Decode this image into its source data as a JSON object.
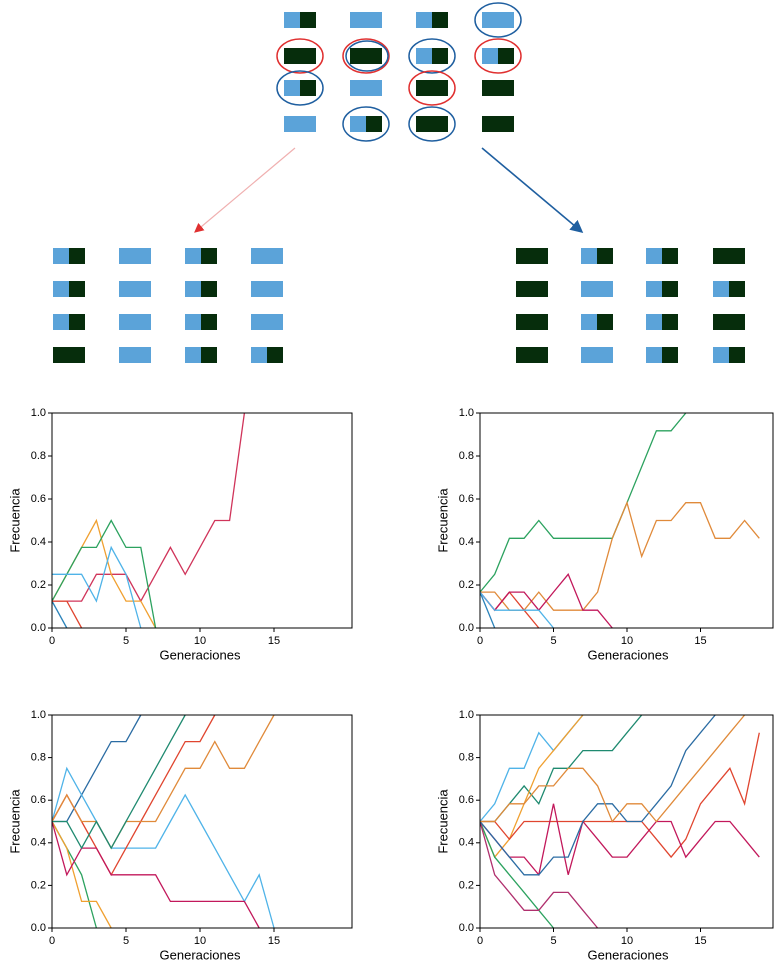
{
  "chart_data": [
    {
      "type": "line",
      "xlabel": "Generaciones",
      "ylabel": "Frecuencia",
      "x": [
        0,
        1,
        2,
        3,
        4,
        5,
        6,
        7,
        8,
        9,
        10,
        11,
        12,
        13,
        14,
        15,
        16,
        17,
        18,
        19
      ],
      "xlim": [
        0,
        20
      ],
      "xticks": [
        0,
        5,
        10,
        15
      ],
      "ylim": [
        0,
        1
      ],
      "yticks": [
        {
          "value": 0,
          "label": "0.0"
        },
        0.2,
        0.4,
        0.6,
        0.8,
        {
          "value": 1,
          "label": "1.0"
        }
      ],
      "series": [
        {
          "color": "#d0345a",
          "values": [
            0.125,
            0.125,
            0.125,
            0.25,
            0.25,
            0.25,
            0.125,
            0.25,
            0.375,
            0.25,
            0.375,
            0.5,
            0.5,
            1.0,
            null,
            null,
            null,
            null,
            null,
            null
          ]
        },
        {
          "color": "#f0a030",
          "values": [
            0.125,
            0.25,
            0.375,
            0.5,
            0.25,
            0.125,
            0.125,
            0,
            null,
            null,
            null,
            null,
            null,
            null,
            null,
            null,
            null,
            null,
            null,
            null
          ]
        },
        {
          "color": "#2ca25f",
          "values": [
            0.125,
            0.25,
            0.375,
            0.375,
            0.5,
            0.375,
            0.375,
            0,
            null,
            null,
            null,
            null,
            null,
            null,
            null,
            null,
            null,
            null,
            null,
            null
          ]
        },
        {
          "color": "#2b83ba",
          "values": [
            0.125,
            0,
            null,
            null,
            null,
            null,
            null,
            null,
            null,
            null,
            null,
            null,
            null,
            null,
            null,
            null,
            null,
            null,
            null,
            null
          ]
        },
        {
          "color": "#4fb3e8",
          "values": [
            0.25,
            0.25,
            0.25,
            0.125,
            0.375,
            0.25,
            0,
            null,
            null,
            null,
            null,
            null,
            null,
            null,
            null,
            null,
            null,
            null,
            null,
            null
          ]
        },
        {
          "color": "#e0452f",
          "values": [
            0.125,
            0.125,
            0,
            null,
            null,
            null,
            null,
            null,
            null,
            null,
            null,
            null,
            null,
            null,
            null,
            null,
            null,
            null,
            null,
            null
          ]
        }
      ]
    },
    {
      "type": "line",
      "xlabel": "Generaciones",
      "ylabel": "Frecuencia",
      "x": [
        0,
        1,
        2,
        3,
        4,
        5,
        6,
        7,
        8,
        9,
        10,
        11,
        12,
        13,
        14,
        15,
        16,
        17,
        18,
        19
      ],
      "xlim": [
        0,
        20
      ],
      "xticks": [
        0,
        5,
        10,
        15
      ],
      "ylim": [
        0,
        1
      ],
      "yticks": [
        {
          "value": 0,
          "label": "0.0"
        },
        0.2,
        0.4,
        0.6,
        0.8,
        {
          "value": 1,
          "label": "1.0"
        }
      ],
      "series": [
        {
          "color": "#2ca25f",
          "values": [
            0.167,
            0.25,
            0.417,
            0.417,
            0.5,
            0.417,
            0.417,
            0.417,
            0.417,
            0.417,
            0.583,
            0.75,
            0.917,
            0.917,
            1.0,
            null,
            null,
            null,
            null,
            null
          ]
        },
        {
          "color": "#e08a3a",
          "values": [
            0.167,
            0.167,
            0.083,
            0.083,
            0.167,
            0.083,
            0.083,
            0.083,
            0.167,
            0.417,
            0.583,
            0.333,
            0.5,
            0.5,
            0.583,
            0.583,
            0.417,
            0.417,
            0.5,
            0.417
          ]
        },
        {
          "color": "#e0452f",
          "values": [
            0.167,
            0.083,
            0.167,
            0.083,
            0,
            null,
            null,
            null,
            null,
            null,
            null,
            null,
            null,
            null,
            null,
            null,
            null,
            null,
            null,
            null
          ]
        },
        {
          "color": "#c2185b",
          "values": [
            0.167,
            0.083,
            0.167,
            0.167,
            0.083,
            0.167,
            0.25,
            0.083,
            0.083,
            0,
            null,
            null,
            null,
            null,
            null,
            null,
            null,
            null,
            null,
            null
          ]
        },
        {
          "color": "#2b83ba",
          "values": [
            0.167,
            0,
            null,
            null,
            null,
            null,
            null,
            null,
            null,
            null,
            null,
            null,
            null,
            null,
            null,
            null,
            null,
            null,
            null,
            null
          ]
        },
        {
          "color": "#4fb3e8",
          "values": [
            0.167,
            0.083,
            0.083,
            0.083,
            0.083,
            0,
            null,
            null,
            null,
            null,
            null,
            null,
            null,
            null,
            null,
            null,
            null,
            null,
            null,
            null
          ]
        }
      ]
    },
    {
      "type": "line",
      "xlabel": "Generaciones",
      "ylabel": "Frecuencia",
      "x": [
        0,
        1,
        2,
        3,
        4,
        5,
        6,
        7,
        8,
        9,
        10,
        11,
        12,
        13,
        14,
        15,
        16,
        17,
        18,
        19
      ],
      "xlim": [
        0,
        20
      ],
      "xticks": [
        0,
        5,
        10,
        15
      ],
      "ylim": [
        0,
        1
      ],
      "yticks": [
        {
          "value": 0,
          "label": "0.0"
        },
        0.2,
        0.4,
        0.6,
        0.8,
        {
          "value": 1,
          "label": "1.0"
        }
      ],
      "series": [
        {
          "color": "#2b6ca3",
          "values": [
            0.5,
            0.5,
            0.625,
            0.75,
            0.875,
            0.875,
            1.0,
            null,
            null,
            null,
            null,
            null,
            null,
            null,
            null,
            null,
            null,
            null,
            null,
            null
          ]
        },
        {
          "color": "#4fb3e8",
          "values": [
            0.5,
            0.75,
            0.625,
            0.5,
            0.375,
            0.375,
            0.375,
            0.375,
            0.5,
            0.625,
            0.5,
            0.375,
            0.25,
            0.125,
            0.25,
            0,
            null,
            null,
            null,
            null
          ]
        },
        {
          "color": "#2ca25f",
          "values": [
            0.5,
            0.375,
            0.25,
            0,
            null,
            null,
            null,
            null,
            null,
            null,
            null,
            null,
            null,
            null,
            null,
            null,
            null,
            null,
            null,
            null
          ]
        },
        {
          "color": "#f0a030",
          "values": [
            0.5,
            0.375,
            0.125,
            0.125,
            0,
            null,
            null,
            null,
            null,
            null,
            null,
            null,
            null,
            null,
            null,
            null,
            null,
            null,
            null,
            null
          ]
        },
        {
          "color": "#e0452f",
          "values": [
            0.5,
            0.625,
            0.5,
            0.375,
            0.25,
            0.375,
            0.5,
            0.625,
            0.75,
            0.875,
            0.875,
            1.0,
            null,
            null,
            null,
            null,
            null,
            null,
            null,
            null
          ]
        },
        {
          "color": "#c2185b",
          "values": [
            0.5,
            0.25,
            0.375,
            0.375,
            0.25,
            0.25,
            0.25,
            0.25,
            0.125,
            0.125,
            0.125,
            0.125,
            0.125,
            0.125,
            0,
            null,
            null,
            null,
            null,
            null
          ]
        },
        {
          "color": "#e08a3a",
          "values": [
            0.5,
            0.625,
            0.5,
            0.5,
            0.375,
            0.5,
            0.5,
            0.5,
            0.625,
            0.75,
            0.75,
            0.875,
            0.75,
            0.75,
            0.875,
            1.0,
            null,
            null,
            null,
            null
          ]
        },
        {
          "color": "#1f8a70",
          "values": [
            0.5,
            0.5,
            0.375,
            0.5,
            0.375,
            0.5,
            0.625,
            0.75,
            0.875,
            1.0,
            null,
            null,
            null,
            null,
            null,
            null,
            null,
            null,
            null,
            null
          ]
        }
      ]
    },
    {
      "type": "line",
      "xlabel": "Generaciones",
      "ylabel": "Frecuencia",
      "x": [
        0,
        1,
        2,
        3,
        4,
        5,
        6,
        7,
        8,
        9,
        10,
        11,
        12,
        13,
        14,
        15,
        16,
        17,
        18,
        19
      ],
      "xlim": [
        0,
        20
      ],
      "xticks": [
        0,
        5,
        10,
        15
      ],
      "ylim": [
        0,
        1
      ],
      "yticks": [
        {
          "value": 0,
          "label": "0.0"
        },
        0.2,
        0.4,
        0.6,
        0.8,
        {
          "value": 1,
          "label": "1.0"
        }
      ],
      "series": [
        {
          "color": "#4fb3e8",
          "values": [
            0.5,
            0.583,
            0.75,
            0.75,
            0.917,
            0.833,
            0.917,
            1.0,
            null,
            null,
            null,
            null,
            null,
            null,
            null,
            null,
            null,
            null,
            null,
            null
          ]
        },
        {
          "color": "#1f8a70",
          "values": [
            0.5,
            0.5,
            0.583,
            0.667,
            0.583,
            0.75,
            0.75,
            0.833,
            0.833,
            0.833,
            0.917,
            1.0,
            null,
            null,
            null,
            null,
            null,
            null,
            null,
            null
          ]
        },
        {
          "color": "#f0a030",
          "values": [
            0.5,
            0.333,
            0.417,
            0.583,
            0.75,
            0.833,
            0.917,
            1.0,
            null,
            null,
            null,
            null,
            null,
            null,
            null,
            null,
            null,
            null,
            null,
            null
          ]
        },
        {
          "color": "#e0452f",
          "values": [
            0.5,
            0.5,
            0.417,
            0.5,
            0.5,
            0.5,
            0.5,
            0.5,
            0.5,
            0.5,
            0.5,
            0.5,
            0.417,
            0.333,
            0.417,
            0.583,
            0.667,
            0.75,
            0.583,
            0.917
          ]
        },
        {
          "color": "#c2185b",
          "values": [
            0.5,
            0.417,
            0.333,
            0.333,
            0.25,
            0.583,
            0.25,
            0.5,
            0.417,
            0.333,
            0.333,
            0.417,
            0.5,
            0.5,
            0.333,
            0.417,
            0.5,
            0.5,
            0.417,
            0.333
          ]
        },
        {
          "color": "#2ca25f",
          "values": [
            0.5,
            0.333,
            0.25,
            0.167,
            0.083,
            0,
            null,
            null,
            null,
            null,
            null,
            null,
            null,
            null,
            null,
            null,
            null,
            null,
            null,
            null
          ]
        },
        {
          "color": "#b0306e",
          "values": [
            0.5,
            0.25,
            0.167,
            0.083,
            0.083,
            0.167,
            0.167,
            0.083,
            0,
            null,
            null,
            null,
            null,
            null,
            null,
            null,
            null,
            null,
            null,
            null
          ]
        },
        {
          "color": "#2b6ca3",
          "values": [
            0.5,
            0.417,
            0.333,
            0.25,
            0.25,
            0.333,
            0.333,
            0.5,
            0.583,
            0.583,
            0.5,
            0.5,
            0.583,
            0.667,
            0.833,
            0.917,
            1.0,
            null,
            null,
            null
          ]
        },
        {
          "color": "#e08a3a",
          "values": [
            0.5,
            0.5,
            0.583,
            0.583,
            0.667,
            0.667,
            0.75,
            0.75,
            0.667,
            0.5,
            0.583,
            0.583,
            0.5,
            0.583,
            0.667,
            0.75,
            0.833,
            0.917,
            1.0,
            null
          ]
        }
      ]
    }
  ]
}
